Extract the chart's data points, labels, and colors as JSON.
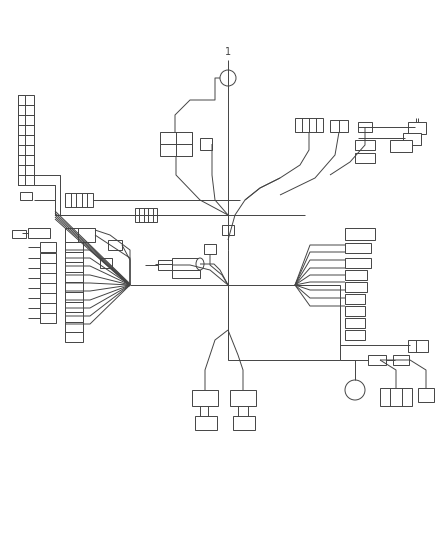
{
  "background_color": "#ffffff",
  "line_color": "#444444",
  "figsize": [
    4.38,
    5.33
  ],
  "dpi": 100,
  "xlim": [
    0,
    438
  ],
  "ylim": [
    0,
    533
  ]
}
